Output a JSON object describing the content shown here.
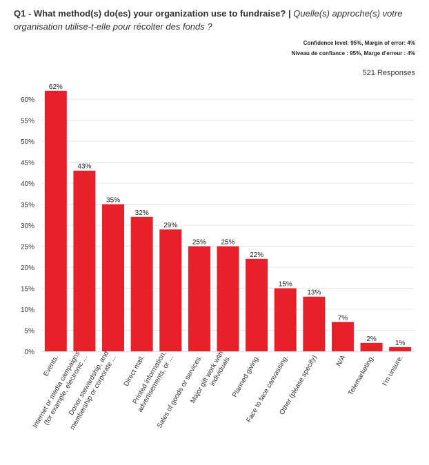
{
  "title": {
    "en": "Q1 - What method(s) do(es) your organization use to fundraise?",
    "sep": "|",
    "fr": "Quelle(s) approche(s) votre organisation utilise-t-elle pour récolter des fonds ?"
  },
  "notes": {
    "confidence_en": "Confidence level: 95%, Margin of error: 4%",
    "confidence_fr": "Niveau de confiance : 95%, Marge d'erreur : 4%"
  },
  "responses_label": "521 Responses",
  "colors": {
    "bar": "#e8202a",
    "grid": "#e6e6e6",
    "axis": "#cccccc"
  },
  "chart_data": {
    "type": "bar",
    "ylim": [
      0,
      60
    ],
    "yticks": [
      "0%",
      "5%",
      "10%",
      "15%",
      "20%",
      "25%",
      "30%",
      "35%",
      "40%",
      "45%",
      "50%",
      "55%",
      "60%"
    ],
    "ytick_values": [
      0,
      5,
      10,
      15,
      20,
      25,
      30,
      35,
      40,
      45,
      50,
      55,
      60
    ],
    "grid": true,
    "categories": [
      [
        "Events."
      ],
      [
        "Internet or media campaigns",
        "(for example, electronic ..."
      ],
      [
        "Donor stewardship, and",
        "membership or corporate ..."
      ],
      [
        "Direct mail."
      ],
      [
        "Printed information,",
        "advertisements, or ..."
      ],
      [
        "Sales of goods or services."
      ],
      [
        "Major gift work with",
        "individuals."
      ],
      [
        "Planned giving."
      ],
      [
        "Face to face canvassing."
      ],
      [
        "Other (please specify)"
      ],
      [
        "N/A"
      ],
      [
        "Telemarketing."
      ],
      [
        "I'm unsure."
      ]
    ],
    "values": [
      62,
      43,
      35,
      32,
      29,
      25,
      25,
      22,
      15,
      13,
      7,
      2,
      1
    ],
    "data_labels": [
      "62%",
      "43%",
      "35%",
      "32%",
      "29%",
      "25%",
      "25%",
      "22%",
      "15%",
      "13%",
      "7%",
      "2%",
      "1%"
    ]
  }
}
